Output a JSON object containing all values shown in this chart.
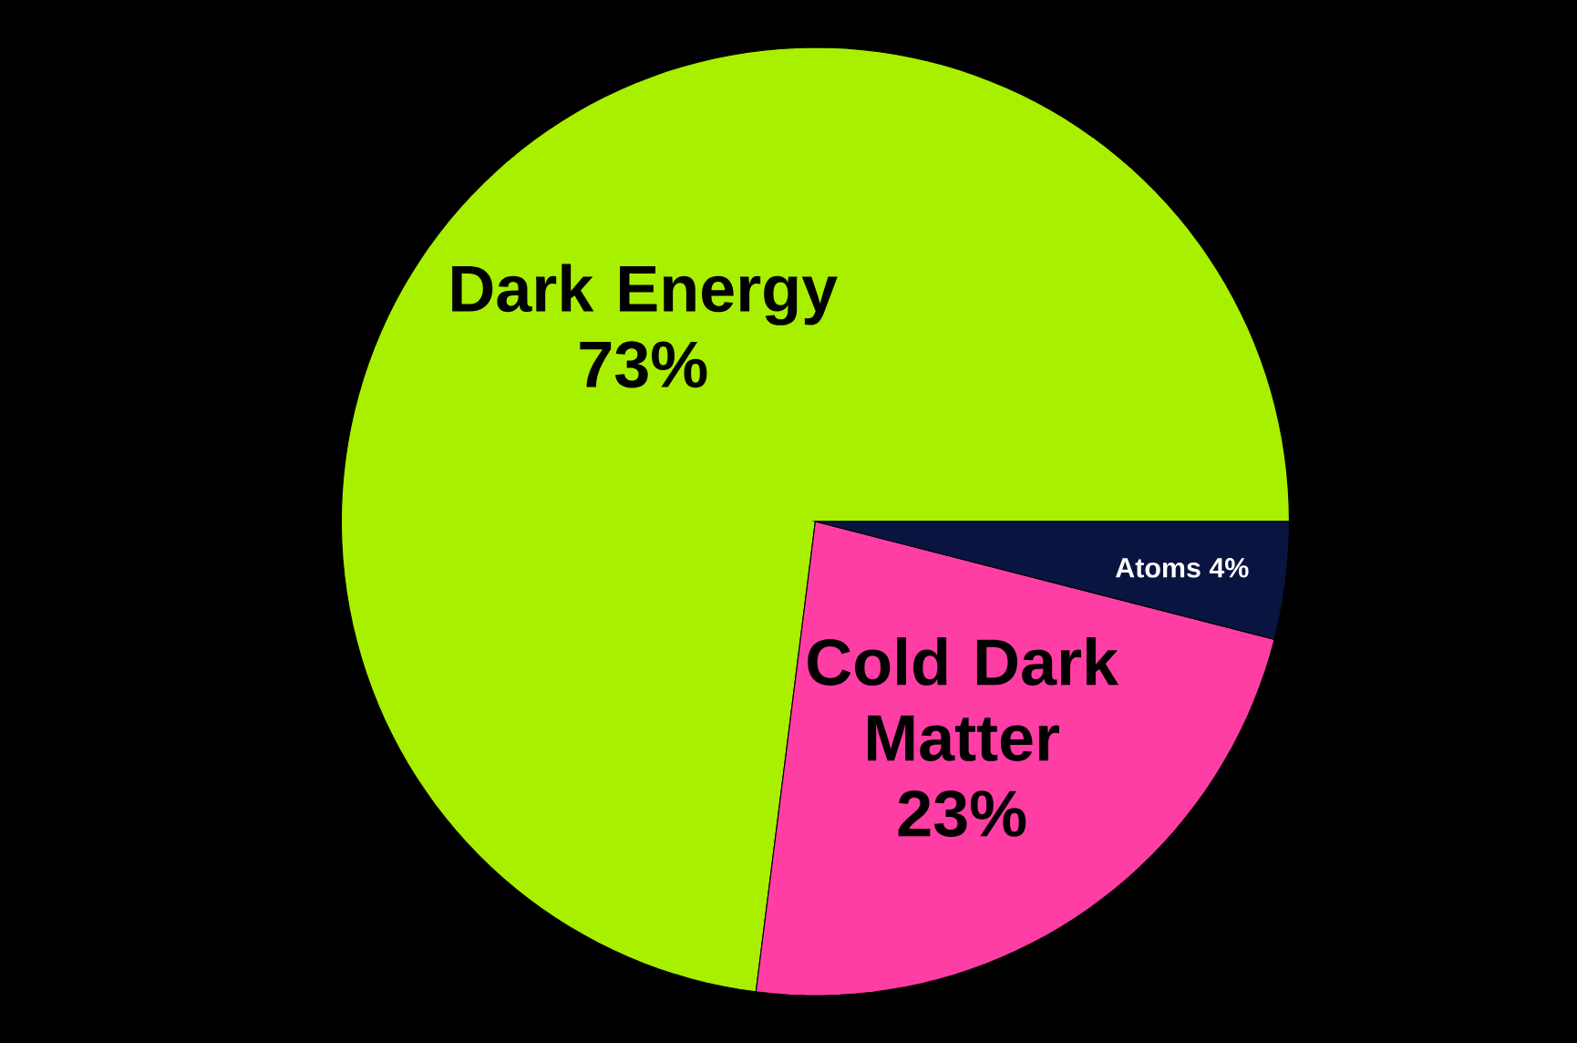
{
  "chart_data": {
    "type": "pie",
    "categories": [
      "Dark Energy",
      "Cold Dark Matter",
      "Atoms"
    ],
    "values": [
      73,
      23,
      4
    ],
    "value_labels": [
      "73%",
      "23%",
      "4%"
    ],
    "colors": [
      "#a8f000",
      "#ff3ea5",
      "#0a1440"
    ]
  }
}
